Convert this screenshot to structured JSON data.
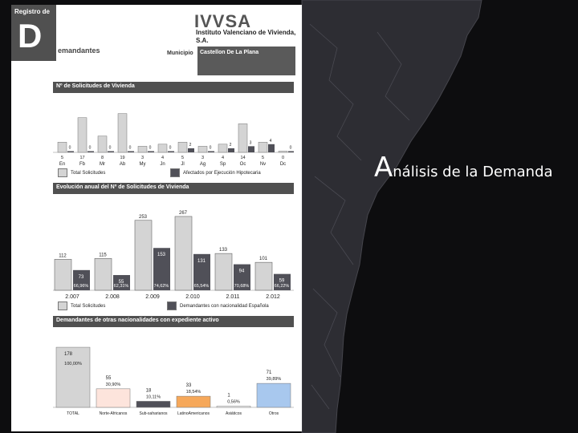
{
  "slide": {
    "title_first": "A",
    "title_rest": "nálisis de la Demanda"
  },
  "colors": {
    "background": "#0d0d0f",
    "map_land": "#2c2c32",
    "light_bar": "#d4d4d4",
    "dark_bar": "#505058",
    "north_african": "#fde4dc",
    "latin_american": "#f6a85a",
    "other": "#a8c8ee"
  },
  "document": {
    "badge_top": "Registro de",
    "badge_letter": "D",
    "badge_rest": "emandantes",
    "org_name": "IVVSA",
    "org_subtitle": "Instituto Valenciano de Vivienda, S.A.",
    "municipality_label": "Municipio",
    "municipality_value": "Castellon De La Plana",
    "section1_title": "Nº de Solicitudes de Vivienda",
    "section2_title": "Evolución anual del Nº de Solicitudes de Vivienda",
    "section3_title": "Demandantes de otras nacionalidades con expediente activo",
    "legend1": [
      "Total Solicitudes",
      "Afectados por Ejecución Hipotecaria"
    ],
    "legend2": [
      "Total Solicitudes",
      "Demandantes con nacionalidad Española"
    ]
  },
  "chart_data": [
    {
      "type": "bar",
      "title": "Nº de Solicitudes de Vivienda",
      "categories": [
        "En",
        "Fb",
        "Mr",
        "Ab",
        "My",
        "Jn",
        "Jl",
        "Ag",
        "Sp",
        "Oc",
        "Nv",
        "Dc"
      ],
      "series": [
        {
          "name": "Total Solicitudes",
          "values": [
            5,
            17,
            8,
            19,
            3,
            4,
            5,
            3,
            4,
            14,
            5,
            0
          ]
        },
        {
          "name": "Afectados por Ejecución Hipotecaria",
          "values": [
            0,
            0,
            0,
            0,
            0,
            0,
            2,
            0,
            2,
            3,
            4,
            0
          ]
        }
      ],
      "small_labels": [
        "0",
        "0",
        "0",
        "0",
        "0",
        "0",
        "2",
        "0",
        "2",
        "3",
        "4",
        "0"
      ],
      "ylim": [
        0,
        22
      ]
    },
    {
      "type": "bar",
      "title": "Evolución anual del Nº de Solicitudes de Vivienda",
      "categories": [
        "2.007",
        "2.008",
        "2.009",
        "2.010",
        "2.011",
        "2.012"
      ],
      "series": [
        {
          "name": "Total Solicitudes",
          "values": [
            112,
            115,
            253,
            267,
            133,
            101
          ]
        },
        {
          "name": "Demandantes con nacionalidad Española",
          "values": [
            73,
            55,
            153,
            131,
            94,
            59
          ]
        }
      ],
      "percent_labels": [
        "66,96%",
        "62,31%",
        "74,62%",
        "65,54%",
        "70,68%",
        "66,22%"
      ],
      "ylim": [
        0,
        290
      ]
    },
    {
      "type": "bar",
      "title": "Demandantes de otras nacionalidades con expediente activo",
      "categories": [
        "TOTAL",
        "Norte-Africanos",
        "Sub-saharianos",
        "LatinoAmericanos",
        "Asiáticos",
        "Otros"
      ],
      "values": [
        178,
        55,
        18,
        33,
        1,
        71
      ],
      "value_labels": [
        "178",
        "55",
        "18",
        "33",
        "1",
        "71"
      ],
      "percent_labels": [
        "100,00%",
        "30,90%",
        "10,11%",
        "18,54%",
        "0,56%",
        "39,89%"
      ],
      "ylim": [
        0,
        190
      ]
    }
  ]
}
